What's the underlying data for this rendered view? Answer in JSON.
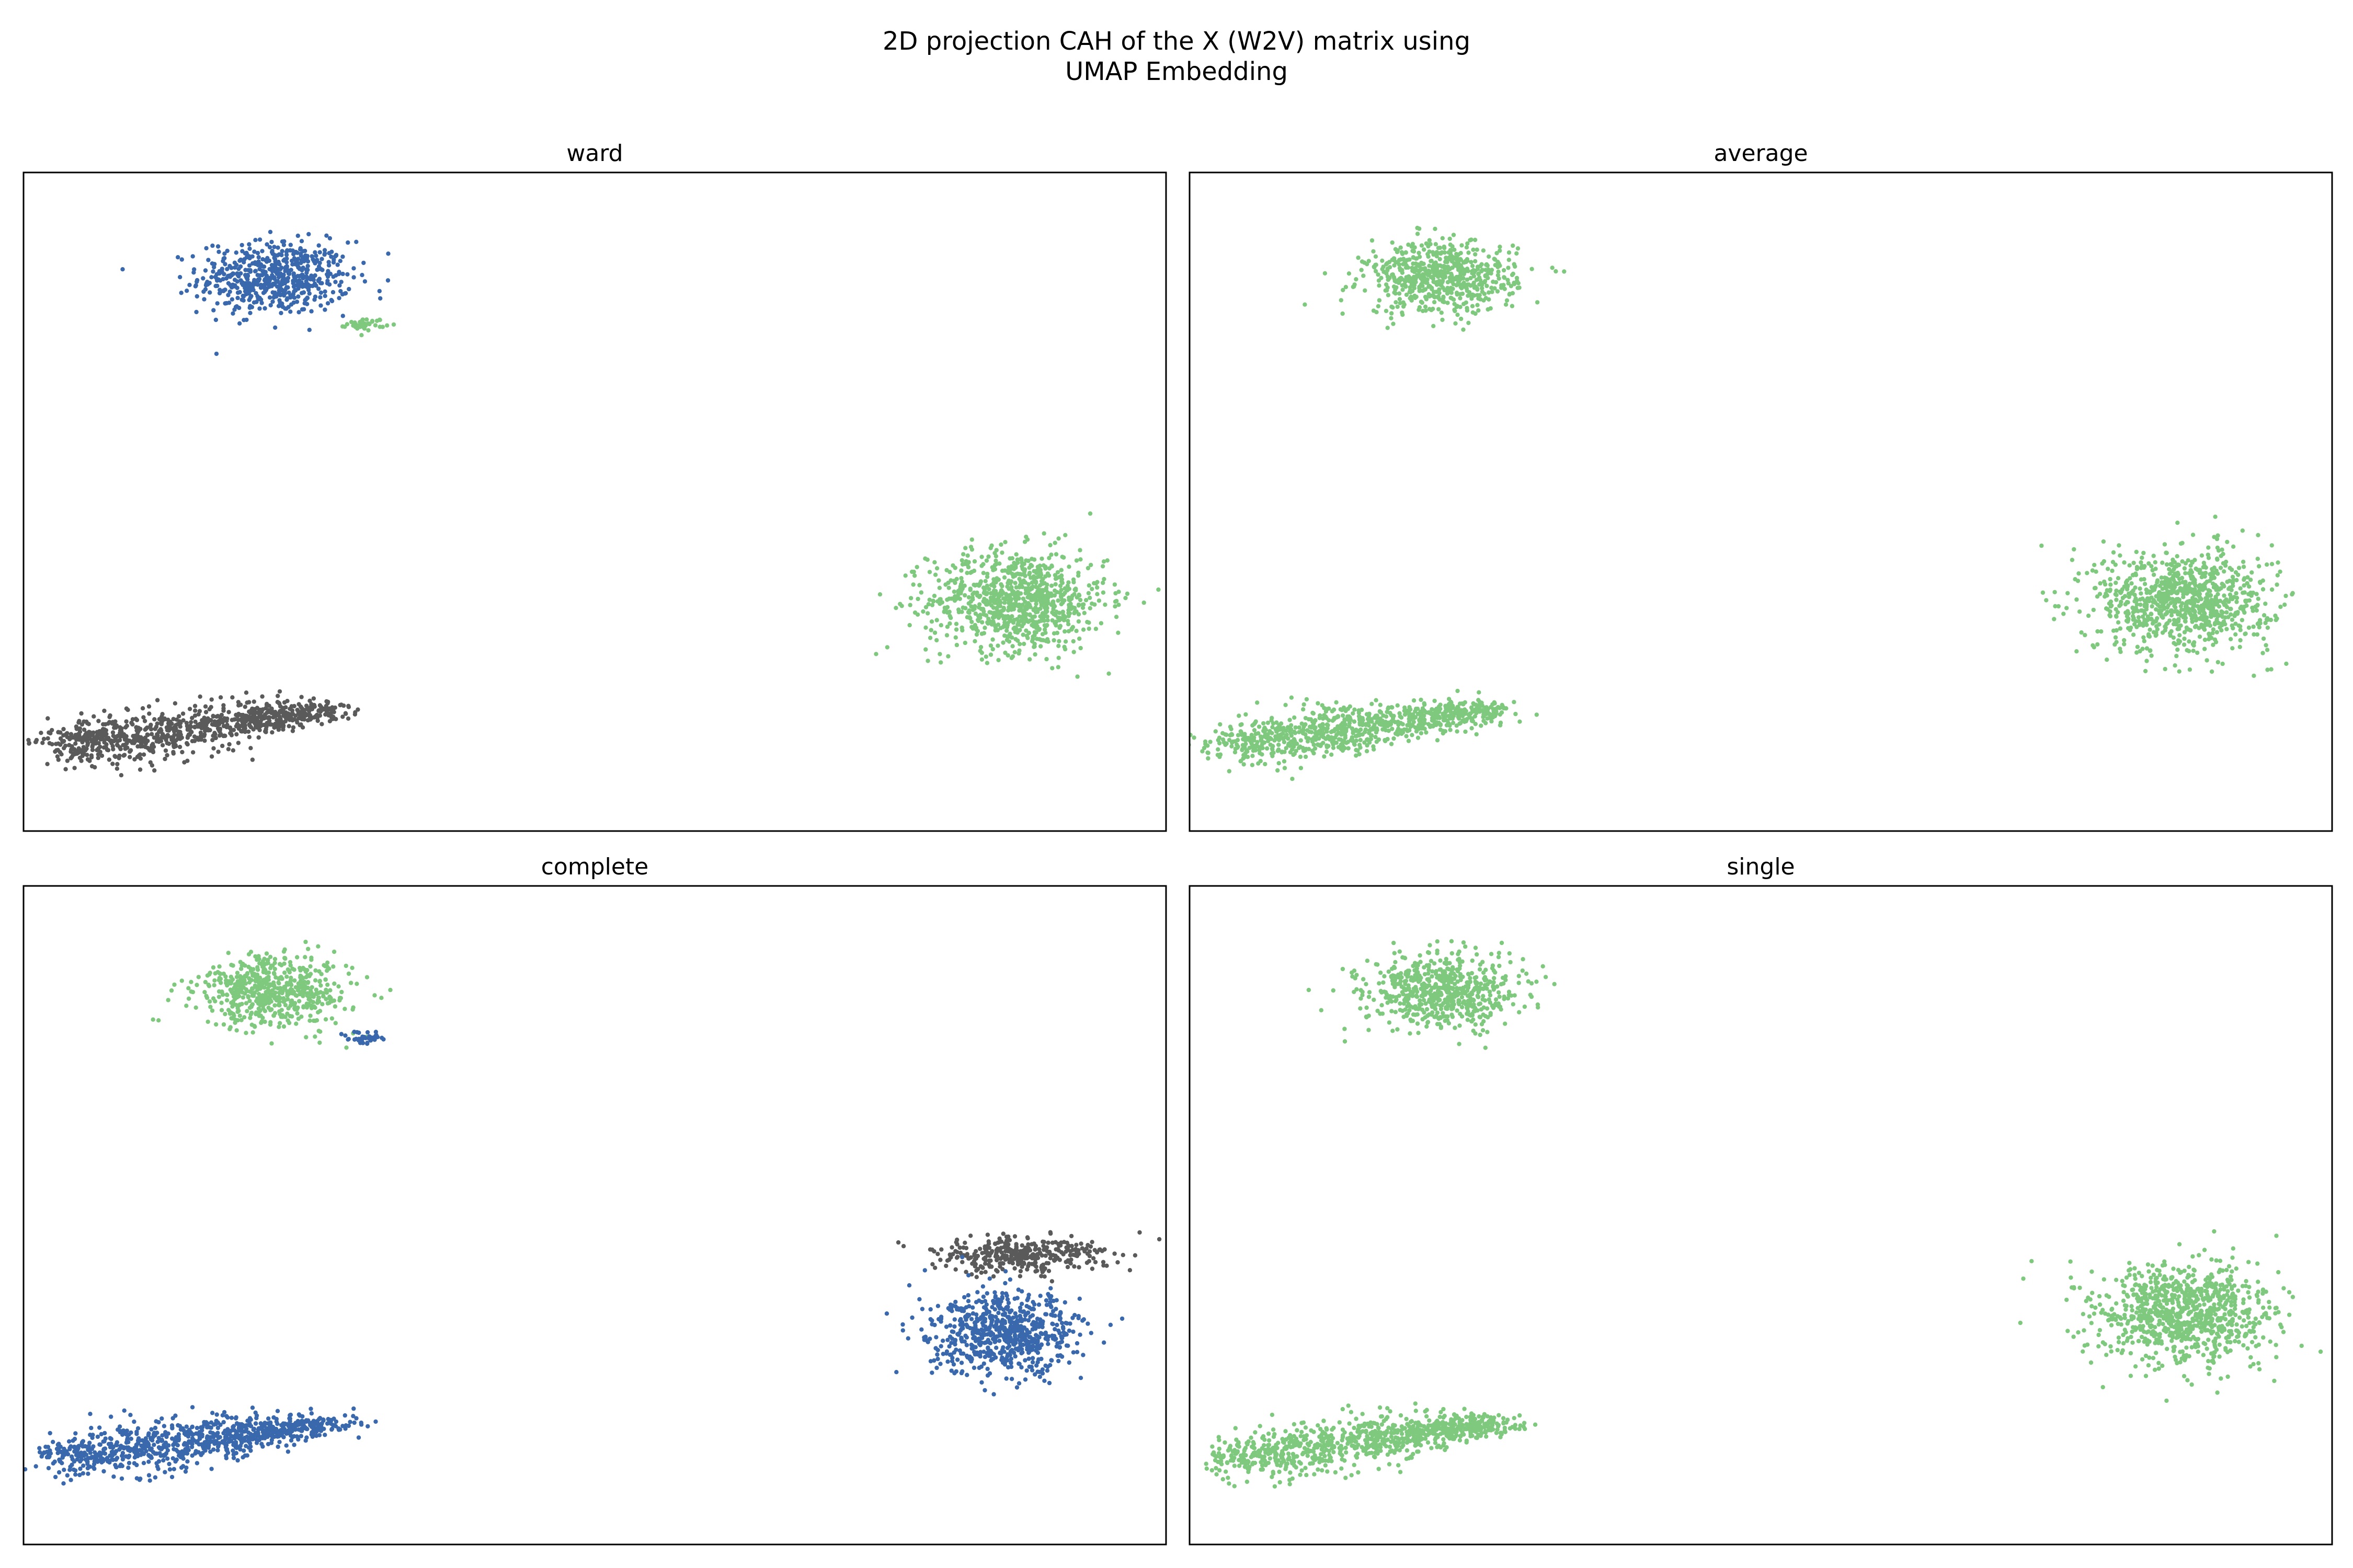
{
  "figure": {
    "title_line1": "2D projection CAH of the X (W2V) matrix using",
    "title_line2": "UMAP Embedding"
  },
  "colors": {
    "blue": "#3a68ad",
    "green": "#7fc97f",
    "gray": "#5a5a5a"
  },
  "chart_data": [
    {
      "type": "scatter",
      "title": "ward",
      "xlabel": "",
      "ylabel": "",
      "grid": false,
      "xlim": [
        0,
        10
      ],
      "ylim": [
        0,
        10
      ],
      "clusters": [
        {
          "region": "top-left",
          "color": "blue",
          "points": 600,
          "center": [
            2.2,
            8.4
          ],
          "spread": [
            0.6,
            0.5
          ]
        },
        {
          "region": "top-left-tail",
          "color": "green",
          "points": 40,
          "center": [
            3.0,
            7.7
          ],
          "spread": [
            0.15,
            0.08
          ]
        },
        {
          "region": "right",
          "color": "green",
          "points": 900,
          "center": [
            8.7,
            3.5
          ],
          "spread": [
            0.7,
            0.7
          ]
        },
        {
          "region": "bottom-left",
          "color": "gray",
          "points": 900,
          "center": [
            1.5,
            1.3
          ],
          "spread": [
            1.0,
            0.6
          ]
        }
      ]
    },
    {
      "type": "scatter",
      "title": "average",
      "xlabel": "",
      "ylabel": "",
      "grid": false,
      "xlim": [
        0,
        10
      ],
      "ylim": [
        0,
        10
      ],
      "clusters": [
        {
          "region": "top-left",
          "color": "green",
          "points": 640,
          "center": [
            2.2,
            8.4
          ],
          "spread": [
            0.6,
            0.5
          ]
        },
        {
          "region": "right",
          "color": "green",
          "points": 900,
          "center": [
            8.7,
            3.5
          ],
          "spread": [
            0.7,
            0.7
          ]
        },
        {
          "region": "bottom-left",
          "color": "green",
          "points": 900,
          "center": [
            1.5,
            1.3
          ],
          "spread": [
            1.0,
            0.6
          ]
        }
      ]
    },
    {
      "type": "scatter",
      "title": "complete",
      "xlabel": "",
      "ylabel": "",
      "grid": false,
      "xlim": [
        0,
        10
      ],
      "ylim": [
        0,
        10
      ],
      "clusters": [
        {
          "region": "top-left",
          "color": "green",
          "points": 600,
          "center": [
            2.2,
            8.4
          ],
          "spread": [
            0.6,
            0.5
          ]
        },
        {
          "region": "top-left-tail",
          "color": "blue",
          "points": 40,
          "center": [
            3.0,
            7.7
          ],
          "spread": [
            0.15,
            0.08
          ]
        },
        {
          "region": "right-upper",
          "color": "gray",
          "points": 350,
          "center": [
            8.7,
            4.4
          ],
          "spread": [
            0.7,
            0.25
          ]
        },
        {
          "region": "right",
          "color": "blue",
          "points": 700,
          "center": [
            8.6,
            3.2
          ],
          "spread": [
            0.6,
            0.55
          ]
        },
        {
          "region": "bottom-left",
          "color": "blue",
          "points": 900,
          "center": [
            1.5,
            1.3
          ],
          "spread": [
            1.0,
            0.6
          ]
        }
      ]
    },
    {
      "type": "scatter",
      "title": "single",
      "xlabel": "",
      "ylabel": "",
      "grid": false,
      "xlim": [
        0,
        10
      ],
      "ylim": [
        0,
        10
      ],
      "clusters": [
        {
          "region": "top-left",
          "color": "green",
          "points": 640,
          "center": [
            2.2,
            8.4
          ],
          "spread": [
            0.6,
            0.5
          ]
        },
        {
          "region": "right",
          "color": "green",
          "points": 900,
          "center": [
            8.7,
            3.5
          ],
          "spread": [
            0.7,
            0.7
          ]
        },
        {
          "region": "bottom-left",
          "color": "green",
          "points": 900,
          "center": [
            1.5,
            1.3
          ],
          "spread": [
            1.0,
            0.6
          ]
        }
      ]
    }
  ]
}
